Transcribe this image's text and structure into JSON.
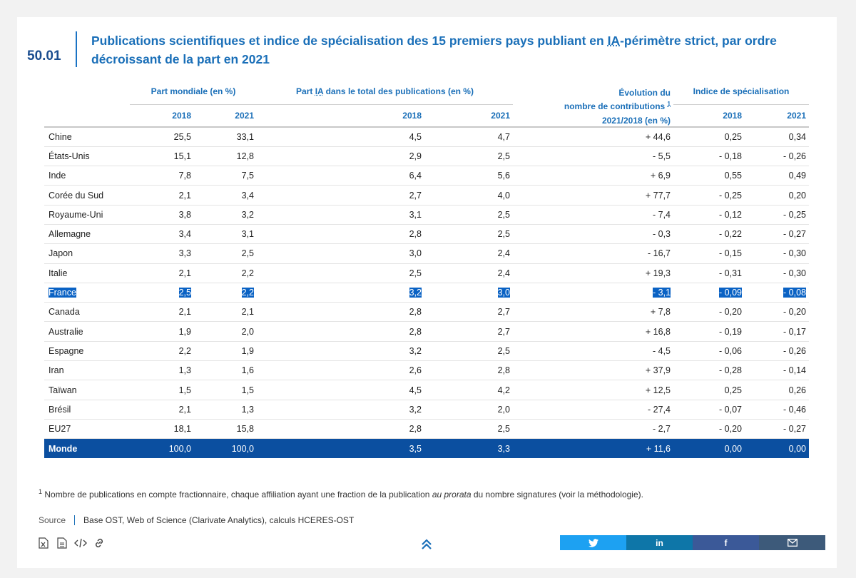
{
  "figure": {
    "number": "50.01",
    "title_part1": "Publications scientifiques et indice de spécialisation des 15 premiers pays publiant en ",
    "title_abbr": "IA",
    "title_part2": "-périmètre strict, par ordre décroissant de la part en 2021"
  },
  "table": {
    "group_headers": {
      "part_mondiale": "Part mondiale (en %)",
      "part_ia": "Part IA dans le total des publications (en %)",
      "evolution_line1": "Évolution du",
      "evolution_line2": "nombre de contributions",
      "evolution_sup": "1",
      "evolution_line3": "2021/2018 (en %)",
      "indice": "Indice de spécialisation"
    },
    "years": [
      "2018",
      "2021",
      "2018",
      "2021",
      "2018",
      "2021"
    ],
    "rows": [
      {
        "country": "Chine",
        "pm2018": "25,5",
        "pm2021": "33,1",
        "ia2018": "4,5",
        "ia2021": "4,7",
        "evol": "+ 44,6",
        "is2018": "0,25",
        "is2021": "0,34"
      },
      {
        "country": "États-Unis",
        "pm2018": "15,1",
        "pm2021": "12,8",
        "ia2018": "2,9",
        "ia2021": "2,5",
        "evol": "- 5,5",
        "is2018": "- 0,18",
        "is2021": "- 0,26"
      },
      {
        "country": "Inde",
        "pm2018": "7,8",
        "pm2021": "7,5",
        "ia2018": "6,4",
        "ia2021": "5,6",
        "evol": "+ 6,9",
        "is2018": "0,55",
        "is2021": "0,49"
      },
      {
        "country": "Corée du Sud",
        "pm2018": "2,1",
        "pm2021": "3,4",
        "ia2018": "2,7",
        "ia2021": "4,0",
        "evol": "+ 77,7",
        "is2018": "- 0,25",
        "is2021": "0,20"
      },
      {
        "country": "Royaume-Uni",
        "pm2018": "3,8",
        "pm2021": "3,2",
        "ia2018": "3,1",
        "ia2021": "2,5",
        "evol": "- 7,4",
        "is2018": "- 0,12",
        "is2021": "- 0,25"
      },
      {
        "country": "Allemagne",
        "pm2018": "3,4",
        "pm2021": "3,1",
        "ia2018": "2,8",
        "ia2021": "2,5",
        "evol": "- 0,3",
        "is2018": "- 0,22",
        "is2021": "- 0,27"
      },
      {
        "country": "Japon",
        "pm2018": "3,3",
        "pm2021": "2,5",
        "ia2018": "3,0",
        "ia2021": "2,4",
        "evol": "- 16,7",
        "is2018": "- 0,15",
        "is2021": "- 0,30"
      },
      {
        "country": "Italie",
        "pm2018": "2,1",
        "pm2021": "2,2",
        "ia2018": "2,5",
        "ia2021": "2,4",
        "evol": "+ 19,3",
        "is2018": "- 0,31",
        "is2021": "- 0,30"
      },
      {
        "country": "France",
        "pm2018": "2,5",
        "pm2021": "2,2",
        "ia2018": "3,2",
        "ia2021": "3,0",
        "evol": "- 3,1",
        "is2018": "- 0,09",
        "is2021": "- 0,08",
        "selected": true
      },
      {
        "country": "Canada",
        "pm2018": "2,1",
        "pm2021": "2,1",
        "ia2018": "2,8",
        "ia2021": "2,7",
        "evol": "+ 7,8",
        "is2018": "- 0,20",
        "is2021": "- 0,20"
      },
      {
        "country": "Australie",
        "pm2018": "1,9",
        "pm2021": "2,0",
        "ia2018": "2,8",
        "ia2021": "2,7",
        "evol": "+ 16,8",
        "is2018": "- 0,19",
        "is2021": "- 0,17"
      },
      {
        "country": "Espagne",
        "pm2018": "2,2",
        "pm2021": "1,9",
        "ia2018": "3,2",
        "ia2021": "2,5",
        "evol": "- 4,5",
        "is2018": "- 0,06",
        "is2021": "- 0,26"
      },
      {
        "country": "Iran",
        "pm2018": "1,3",
        "pm2021": "1,6",
        "ia2018": "2,6",
        "ia2021": "2,8",
        "evol": "+ 37,9",
        "is2018": "- 0,28",
        "is2021": "- 0,14"
      },
      {
        "country": "Taïwan",
        "pm2018": "1,5",
        "pm2021": "1,5",
        "ia2018": "4,5",
        "ia2021": "4,2",
        "evol": "+ 12,5",
        "is2018": "0,25",
        "is2021": "0,26"
      },
      {
        "country": "Brésil",
        "pm2018": "2,1",
        "pm2021": "1,3",
        "ia2018": "3,2",
        "ia2021": "2,0",
        "evol": "- 27,4",
        "is2018": "-  0,07",
        "is2021": "- 0,46"
      },
      {
        "country": "EU27",
        "pm2018": "18,1",
        "pm2021": "15,8",
        "ia2018": "2,8",
        "ia2021": "2,5",
        "evol": "- 2,7",
        "is2018": "- 0,20",
        "is2021": "- 0,27"
      }
    ],
    "world": {
      "country": "Monde",
      "pm2018": "100,0",
      "pm2021": "100,0",
      "ia2018": "3,5",
      "ia2021": "3,3",
      "evol": "+ 11,6",
      "is2018": "0,00",
      "is2021": "0,00"
    }
  },
  "footnote": {
    "sup": "1",
    "text_before": " Nombre de publications en compte fractionnaire, chaque affiliation ayant une fraction de la publication ",
    "text_italic": "au prorata",
    "text_after": " du nombre signatures (voir la méthodologie)."
  },
  "source": {
    "label": "Source",
    "text": "Base OST, Web of Science (Clarivate Analytics), calculs HCERES-OST"
  },
  "tools": [
    "excel-icon",
    "document-icon",
    "code-icon",
    "link-icon"
  ],
  "share": [
    {
      "name": "twitter-icon",
      "color": "#1da1f2"
    },
    {
      "name": "linkedin-icon",
      "color": "#0e76a8"
    },
    {
      "name": "facebook-icon",
      "color": "#3b5998"
    },
    {
      "name": "email-icon",
      "color": "#3d5a7a"
    }
  ]
}
